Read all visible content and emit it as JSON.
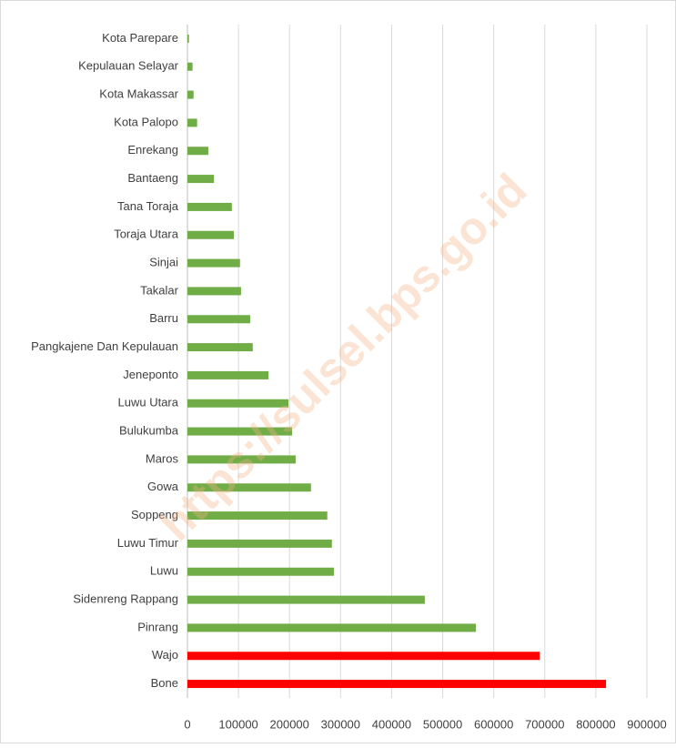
{
  "chart_data": {
    "type": "barh",
    "watermark": "https://sulsel.bps.go.id",
    "categories": [
      "Kota Parepare",
      "Kepulauan Selayar",
      "Kota Makassar",
      "Kota Palopo",
      "Enrekang",
      "Bantaeng",
      "Tana Toraja",
      "Toraja Utara",
      "Sinjai",
      "Takalar",
      "Barru",
      "Pangkajene Dan Kepulauan",
      "Jeneponto",
      "Luwu Utara",
      "Bulukumba",
      "Maros",
      "Gowa",
      "Soppeng",
      "Luwu Timur",
      "Luwu",
      "Sidenreng Rappang",
      "Pinrang",
      "Wajo",
      "Bone"
    ],
    "values": [
      3000,
      10000,
      12000,
      19000,
      41000,
      52000,
      87000,
      91000,
      103000,
      105000,
      123000,
      128000,
      159000,
      198000,
      205000,
      212000,
      242000,
      274000,
      283000,
      287000,
      465000,
      565000,
      690000,
      820000
    ],
    "colors": [
      "#70ad47",
      "#70ad47",
      "#70ad47",
      "#70ad47",
      "#70ad47",
      "#70ad47",
      "#70ad47",
      "#70ad47",
      "#70ad47",
      "#70ad47",
      "#70ad47",
      "#70ad47",
      "#70ad47",
      "#70ad47",
      "#70ad47",
      "#70ad47",
      "#70ad47",
      "#70ad47",
      "#70ad47",
      "#70ad47",
      "#70ad47",
      "#70ad47",
      "#ff0000",
      "#ff0000"
    ],
    "xlim": [
      0,
      900000
    ],
    "xticks": [
      0,
      100000,
      200000,
      300000,
      400000,
      500000,
      600000,
      700000,
      800000,
      900000
    ],
    "grid": true
  }
}
